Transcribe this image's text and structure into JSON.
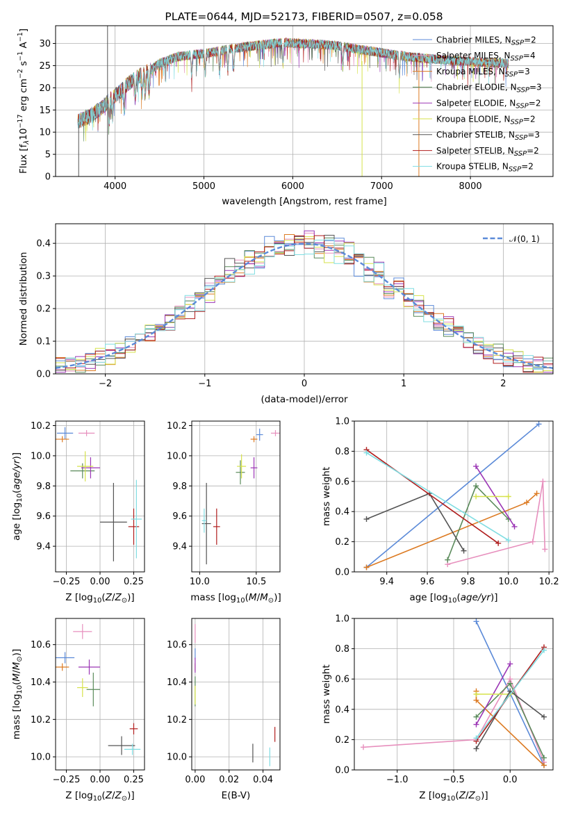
{
  "figure": {
    "title": "PLATE=0644, MJD=52173, FIBERID=0507, z=0.058"
  },
  "models": [
    {
      "name": "Chabrier MILES",
      "nssp": "2",
      "color": "#5b8ad8"
    },
    {
      "name": "Salpeter MILES",
      "nssp": "4",
      "color": "#e78fbd"
    },
    {
      "name": "Kroupa MILES",
      "nssp": "3",
      "color": "#dc7a22"
    },
    {
      "name": "Chabrier ELODIE",
      "nssp": "3",
      "color": "#5a8a5a"
    },
    {
      "name": "Salpeter ELODIE",
      "nssp": "2",
      "color": "#9b35b5"
    },
    {
      "name": "Kroupa ELODIE",
      "nssp": "2",
      "color": "#d6e24a"
    },
    {
      "name": "Chabrier STELIB",
      "nssp": "3",
      "color": "#545454"
    },
    {
      "name": "Salpeter STELIB",
      "nssp": "2",
      "color": "#b01c1c"
    },
    {
      "name": "Kroupa STELIB",
      "nssp": "2",
      "color": "#7fdde2"
    }
  ],
  "legend_nssp_prefix": "N",
  "legend_nssp_sub": "SSP",
  "chart_data": [
    {
      "id": "spectrum",
      "type": "line",
      "title": "PLATE=0644, MJD=52173, FIBERID=0507, z=0.058",
      "xlabel": "wavelength [Angstrom, rest frame]",
      "ylabel_parts": [
        "Flux [f",
        "λ",
        "10",
        "−17",
        " erg cm",
        "−2",
        " s",
        "−1",
        " A",
        "−1",
        "]"
      ],
      "xlim": [
        3330,
        8930
      ],
      "ylim": [
        0,
        34
      ],
      "xticks": [
        4000,
        5000,
        6000,
        7000,
        8000
      ],
      "yticks": [
        0,
        5,
        10,
        15,
        20,
        25,
        30
      ],
      "grid": true,
      "legend": "top-right",
      "continuum": {
        "x": [
          3580,
          3700,
          3850,
          3950,
          4050,
          4150,
          4300,
          4400,
          4500,
          4700,
          4900,
          5100,
          5300,
          5500,
          5700,
          5900,
          6100,
          6300,
          6500,
          6700,
          6900,
          7100,
          7300,
          7500,
          7700,
          7900,
          8100,
          8300,
          8430
        ],
        "y": [
          12.5,
          13.5,
          15.5,
          17.5,
          19,
          21,
          23,
          24,
          25.5,
          27,
          27.5,
          28,
          28.8,
          29.3,
          29.8,
          30.2,
          30,
          29.8,
          29.5,
          28.8,
          28.2,
          27.6,
          27,
          26.6,
          26.3,
          26,
          25.8,
          25.6,
          25.5
        ]
      },
      "spike_lines": [
        {
          "x": 3915,
          "y0": 0,
          "y1": 34
        },
        {
          "x": 6780,
          "y0": 0,
          "y1": 26
        },
        {
          "x": 7420,
          "y0": 0,
          "y1": 27
        },
        {
          "x": 3590,
          "y0": 0,
          "y1": 12
        }
      ]
    },
    {
      "id": "residual-hist",
      "type": "histogram",
      "xlabel": "(data-model)/error",
      "ylabel": "Normed distribution",
      "xlim": [
        -2.5,
        2.5
      ],
      "ylim": [
        0,
        0.46
      ],
      "xticks": [
        -2,
        -1,
        0,
        1,
        2
      ],
      "yticks": [
        0.0,
        0.1,
        0.2,
        0.3,
        0.4
      ],
      "grid": true,
      "legend": "top-right",
      "reference_label": "𝒩(0, 1)",
      "reference_color": "#5b8ad8",
      "bin_width": 0.1
    },
    {
      "id": "age-vs-z",
      "type": "errorbar",
      "xlabel": "Z [log10(Z/Z⊙)]",
      "ylabel": "age [log10(age/yr)]",
      "xlim": [
        -0.33,
        0.33
      ],
      "ylim": [
        9.23,
        10.23
      ],
      "xticks": [
        -0.25,
        0.0,
        0.25
      ],
      "yticks": [
        9.4,
        9.6,
        9.8,
        10.0,
        10.2
      ],
      "grid": true,
      "points": [
        {
          "model": 0,
          "x": -0.26,
          "y": 10.15,
          "xerr": 0.06,
          "yerr": 0.04
        },
        {
          "model": 1,
          "x": -0.1,
          "y": 10.15,
          "xerr": 0.06,
          "yerr": 0.02
        },
        {
          "model": 2,
          "x": -0.28,
          "y": 10.11,
          "xerr": 0.05,
          "yerr": 0.02
        },
        {
          "model": 3,
          "x": -0.13,
          "y": 9.9,
          "xerr": 0.09,
          "yerr": 0.05
        },
        {
          "model": 4,
          "x": -0.07,
          "y": 9.92,
          "xerr": 0.07,
          "yerr": 0.07
        },
        {
          "model": 5,
          "x": -0.11,
          "y": 9.93,
          "xerr": 0.06,
          "yerr": 0.1
        },
        {
          "model": 6,
          "x": 0.1,
          "y": 9.56,
          "xerr": 0.1,
          "yerr": 0.26
        },
        {
          "model": 7,
          "x": 0.25,
          "y": 9.53,
          "xerr": 0.04,
          "yerr": 0.12
        },
        {
          "model": 8,
          "x": 0.27,
          "y": 9.58,
          "xerr": 0.04,
          "yerr": 0.26
        }
      ]
    },
    {
      "id": "age-vs-mass",
      "type": "errorbar",
      "xlabel": "mass [log10(M/M⊙)]",
      "ylabel": "",
      "xlim": [
        9.93,
        10.71
      ],
      "ylim": [
        9.23,
        10.23
      ],
      "xticks": [
        10.0,
        10.5
      ],
      "yticks": [
        9.4,
        9.6,
        9.8,
        10.0,
        10.2
      ],
      "grid": true,
      "points": [
        {
          "model": 0,
          "x": 10.53,
          "y": 10.14,
          "xerr": 0.03,
          "yerr": 0.04
        },
        {
          "model": 1,
          "x": 10.67,
          "y": 10.15,
          "xerr": 0.04,
          "yerr": 0.02
        },
        {
          "model": 2,
          "x": 10.48,
          "y": 10.11,
          "xerr": 0.03,
          "yerr": 0.02
        },
        {
          "model": 3,
          "x": 10.36,
          "y": 9.89,
          "xerr": 0.04,
          "yerr": 0.08
        },
        {
          "model": 4,
          "x": 10.48,
          "y": 9.92,
          "xerr": 0.03,
          "yerr": 0.07
        },
        {
          "model": 5,
          "x": 10.37,
          "y": 9.93,
          "xerr": 0.04,
          "yerr": 0.08
        },
        {
          "model": 6,
          "x": 10.06,
          "y": 9.55,
          "xerr": 0.04,
          "yerr": 0.27
        },
        {
          "model": 7,
          "x": 10.15,
          "y": 9.53,
          "xerr": 0.03,
          "yerr": 0.12
        },
        {
          "model": 8,
          "x": 10.04,
          "y": 9.57,
          "xerr": 0.02,
          "yerr": 0.08
        }
      ]
    },
    {
      "id": "weight-vs-age",
      "type": "line",
      "xlabel": "age [log10(age/yr)]",
      "ylabel": "mass weight",
      "xlim": [
        9.24,
        10.22
      ],
      "ylim": [
        0,
        1.0
      ],
      "xticks": [
        9.4,
        9.6,
        9.8,
        10.0,
        10.2
      ],
      "yticks": [
        0.0,
        0.2,
        0.4,
        0.6,
        0.8,
        1.0
      ],
      "grid": true,
      "series": [
        {
          "model": 0,
          "x": [
            9.3,
            10.15
          ],
          "y": [
            0.03,
            0.98
          ]
        },
        {
          "model": 1,
          "x": [
            9.7,
            10.12,
            10.17,
            10.18
          ],
          "y": [
            0.05,
            0.2,
            0.6,
            0.15
          ]
        },
        {
          "model": 2,
          "x": [
            9.3,
            10.09,
            10.14
          ],
          "y": [
            0.03,
            0.46,
            0.52
          ]
        },
        {
          "model": 3,
          "x": [
            9.7,
            9.84,
            10.0
          ],
          "y": [
            0.08,
            0.57,
            0.35
          ]
        },
        {
          "model": 4,
          "x": [
            9.84,
            10.03
          ],
          "y": [
            0.7,
            0.3
          ]
        },
        {
          "model": 5,
          "x": [
            9.84,
            10.0
          ],
          "y": [
            0.5,
            0.5
          ]
        },
        {
          "model": 6,
          "x": [
            9.3,
            9.61,
            9.78
          ],
          "y": [
            0.35,
            0.52,
            0.14
          ]
        },
        {
          "model": 7,
          "x": [
            9.3,
            9.95
          ],
          "y": [
            0.81,
            0.19
          ]
        },
        {
          "model": 8,
          "x": [
            9.3,
            10.0
          ],
          "y": [
            0.79,
            0.21
          ]
        }
      ]
    },
    {
      "id": "mass-vs-z",
      "type": "errorbar",
      "xlabel": "Z [log10(Z/Z⊙)]",
      "ylabel": "mass [log10(M/M⊙)]",
      "xlim": [
        -0.33,
        0.33
      ],
      "ylim": [
        9.93,
        10.74
      ],
      "xticks": [
        -0.25,
        0.0,
        0.25
      ],
      "yticks": [
        10.0,
        10.2,
        10.4,
        10.6
      ],
      "grid": true,
      "points": [
        {
          "model": 0,
          "x": -0.26,
          "y": 10.53,
          "xerr": 0.07,
          "yerr": 0.03
        },
        {
          "model": 1,
          "x": -0.13,
          "y": 10.67,
          "xerr": 0.07,
          "yerr": 0.04
        },
        {
          "model": 2,
          "x": -0.28,
          "y": 10.48,
          "xerr": 0.05,
          "yerr": 0.02
        },
        {
          "model": 3,
          "x": -0.05,
          "y": 10.36,
          "xerr": 0.05,
          "yerr": 0.09
        },
        {
          "model": 4,
          "x": -0.08,
          "y": 10.48,
          "xerr": 0.08,
          "yerr": 0.04
        },
        {
          "model": 5,
          "x": -0.13,
          "y": 10.37,
          "xerr": 0.04,
          "yerr": 0.05
        },
        {
          "model": 6,
          "x": 0.16,
          "y": 10.06,
          "xerr": 0.1,
          "yerr": 0.05
        },
        {
          "model": 7,
          "x": 0.25,
          "y": 10.15,
          "xerr": 0.03,
          "yerr": 0.03
        },
        {
          "model": 8,
          "x": 0.24,
          "y": 10.04,
          "xerr": 0.06,
          "yerr": 0.03
        }
      ]
    },
    {
      "id": "mass-vs-ebv",
      "type": "errorbar",
      "xlabel": "E(B-V)",
      "ylabel": "",
      "xlim": [
        -0.002,
        0.05
      ],
      "ylim": [
        9.93,
        10.74
      ],
      "xticks": [
        0.0,
        0.02,
        0.04
      ],
      "yticks": [
        10.0,
        10.2,
        10.4,
        10.6
      ],
      "grid": true,
      "points": [
        {
          "model": 0,
          "x": 0.0,
          "y": 10.55,
          "xerr": 0.0,
          "yerr": 0.03
        },
        {
          "model": 1,
          "x": 0.0,
          "y": 10.66,
          "xerr": 0.0,
          "yerr": 0.05
        },
        {
          "model": 2,
          "x": 0.0,
          "y": 10.48,
          "xerr": 0.0,
          "yerr": 0.02
        },
        {
          "model": 3,
          "x": 0.0,
          "y": 10.35,
          "xerr": 0.0,
          "yerr": 0.08
        },
        {
          "model": 4,
          "x": 0.0,
          "y": 10.49,
          "xerr": 0.0,
          "yerr": 0.04
        },
        {
          "model": 5,
          "x": 0.0,
          "y": 10.33,
          "xerr": 0.0,
          "yerr": 0.05
        },
        {
          "model": 6,
          "x": 0.034,
          "y": 10.02,
          "xerr": 0.0,
          "yerr": 0.05
        },
        {
          "model": 7,
          "x": 0.047,
          "y": 10.12,
          "xerr": 0.0,
          "yerr": 0.04
        },
        {
          "model": 8,
          "x": 0.044,
          "y": 10.0,
          "xerr": 0.0,
          "yerr": 0.05
        }
      ]
    },
    {
      "id": "weight-vs-z",
      "type": "line",
      "xlabel": "Z [log10(Z/Z⊙)]",
      "ylabel": "mass weight",
      "xlim": [
        -1.38,
        0.38
      ],
      "ylim": [
        0,
        1.0
      ],
      "xticks": [
        -1.0,
        -0.5,
        0.0
      ],
      "yticks": [
        0.0,
        0.2,
        0.4,
        0.6,
        0.8,
        1.0
      ],
      "grid": true,
      "series": [
        {
          "model": 0,
          "x": [
            -0.3,
            0.3
          ],
          "y": [
            0.98,
            0.03
          ]
        },
        {
          "model": 1,
          "x": [
            -1.3,
            -0.3,
            0.0,
            0.3
          ],
          "y": [
            0.15,
            0.2,
            0.6,
            0.05
          ]
        },
        {
          "model": 2,
          "x": [
            -0.3,
            -0.3,
            0.3
          ],
          "y": [
            0.52,
            0.46,
            0.03
          ]
        },
        {
          "model": 3,
          "x": [
            -0.3,
            0.0,
            0.3
          ],
          "y": [
            0.35,
            0.57,
            0.08
          ]
        },
        {
          "model": 4,
          "x": [
            -0.3,
            0.0
          ],
          "y": [
            0.3,
            0.7
          ]
        },
        {
          "model": 5,
          "x": [
            -0.3,
            0.0
          ],
          "y": [
            0.5,
            0.5
          ]
        },
        {
          "model": 6,
          "x": [
            -0.3,
            0.0,
            0.3
          ],
          "y": [
            0.14,
            0.52,
            0.35
          ]
        },
        {
          "model": 7,
          "x": [
            -0.3,
            0.3
          ],
          "y": [
            0.19,
            0.81
          ]
        },
        {
          "model": 8,
          "x": [
            -0.3,
            0.3
          ],
          "y": [
            0.21,
            0.79
          ]
        }
      ]
    }
  ]
}
